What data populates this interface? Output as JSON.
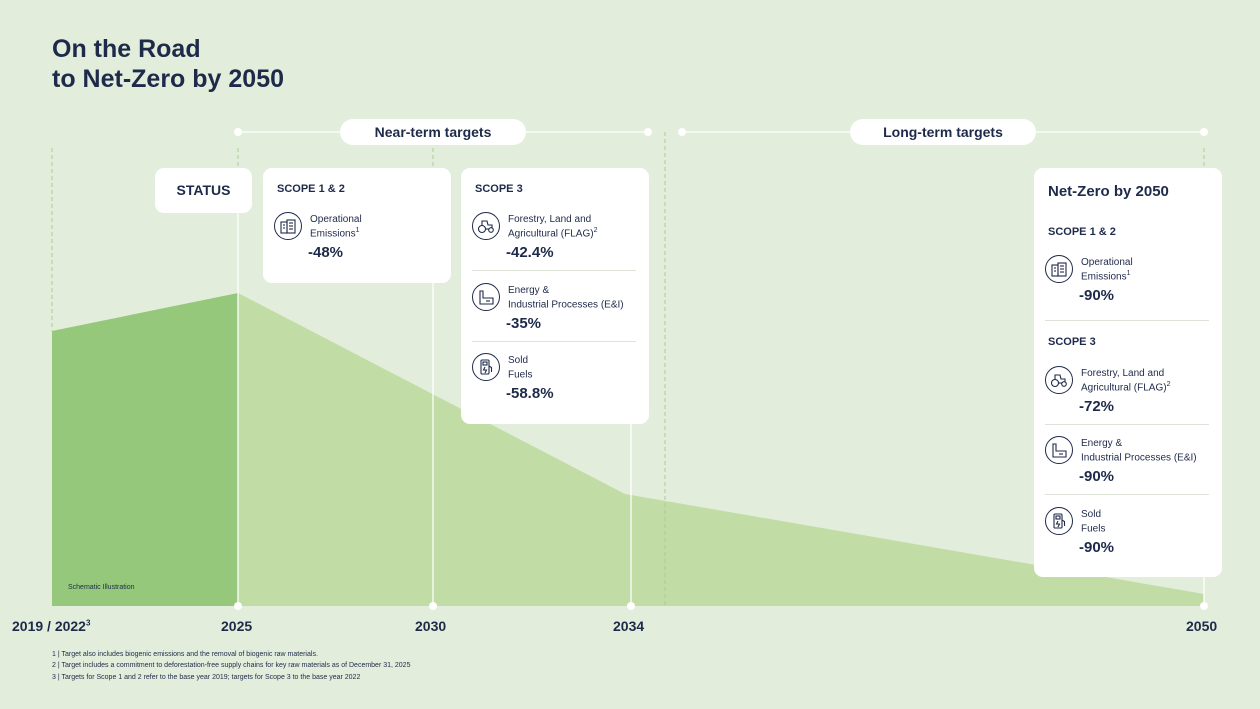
{
  "title": {
    "line1": "On the Road",
    "line2": "to Net-Zero by 2050"
  },
  "ranges": {
    "near_term": "Near-term targets",
    "long_term": "Long-term targets"
  },
  "status_label": "STATUS",
  "years": [
    "2019 / 2022",
    "2025",
    "2030",
    "2034",
    "2050"
  ],
  "year_sup": "3",
  "schematic_note": "Schematic Illustration",
  "near_scope12": {
    "heading": "SCOPE 1 & 2",
    "items": [
      {
        "icon": "building-icon",
        "label": "Operational\nEmissions",
        "sup": "1",
        "value": "-48%"
      }
    ]
  },
  "near_scope3": {
    "heading": "SCOPE 3",
    "items": [
      {
        "icon": "tractor-icon",
        "label": "Forestry, Land and\nAgricultural (FLAG)",
        "sup": "2",
        "value": "-42.4%"
      },
      {
        "icon": "factory-icon",
        "label": "Energy &\nIndustrial Processes (E&I)",
        "sup": "",
        "value": "-35%"
      },
      {
        "icon": "fuel-pump-icon",
        "label": "Sold\nFuels",
        "sup": "",
        "value": "-58.8%"
      }
    ]
  },
  "net_zero": {
    "title": "Net-Zero by 2050",
    "scope12_heading": "SCOPE 1 & 2",
    "scope12_items": [
      {
        "icon": "building-icon",
        "label": "Operational\nEmissions",
        "sup": "1",
        "value": "-90%"
      }
    ],
    "scope3_heading": "SCOPE 3",
    "scope3_items": [
      {
        "icon": "tractor-icon",
        "label": "Forestry, Land and\nAgricultural (FLAG)",
        "sup": "2",
        "value": "-72%"
      },
      {
        "icon": "factory-icon",
        "label": "Energy &\nIndustrial Processes (E&I)",
        "sup": "",
        "value": "-90%"
      },
      {
        "icon": "fuel-pump-icon",
        "label": "Sold\nFuels",
        "sup": "",
        "value": "-90%"
      }
    ]
  },
  "footnotes": [
    "1 | Target also includes biogenic emissions and the removal of biogenic raw materials.",
    "2 | Target includes a commitment to deforestation-free supply chains for key raw materials as of December 31, 2025",
    "3 | Targets for Scope 1 and 2 refer to the base year 2019; targets for Scope 3 to the base year 2022"
  ],
  "colors": {
    "background": "#e2eedb",
    "area_light": "#c1dca4",
    "area_dark": "#95c87a",
    "text": "#1e2a4a",
    "card": "#ffffff"
  }
}
